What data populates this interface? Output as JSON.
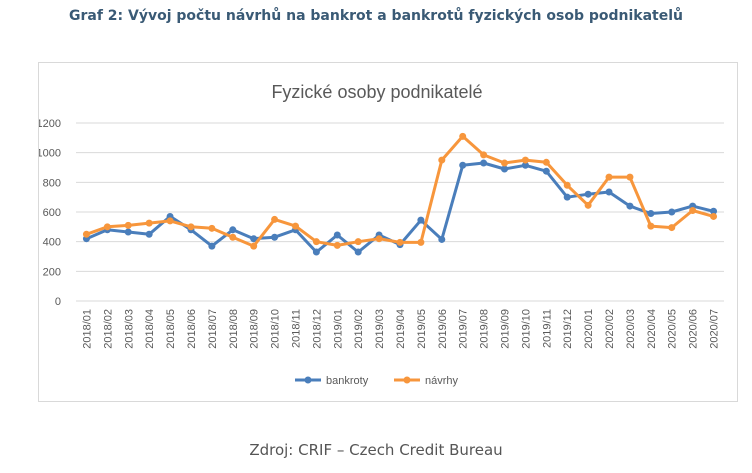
{
  "heading": "Graf 2: Vývoj počtu návrhů na bankrot a bankrotů fyzických osob podnikatelů",
  "source": "Zdroj: CRIF – Czech Credit Bureau",
  "colors": {
    "bankroty": "#4a7ebb",
    "navrhy": "#f7963c",
    "grid": "#d9d9d9",
    "text": "#595959"
  },
  "chart_data": {
    "type": "line",
    "title": "Fyzické osoby podnikatelé",
    "xlabel": "",
    "ylabel": "",
    "ylim": [
      0,
      1200
    ],
    "yticks": [
      "0",
      "200",
      "400",
      "600",
      "800",
      "1000",
      "1200"
    ],
    "grid": true,
    "legend": "bottom",
    "categories": [
      "2018/01",
      "2018/02",
      "2018/03",
      "2018/04",
      "2018/05",
      "2018/06",
      "2018/07",
      "2018/08",
      "2018/09",
      "2018/10",
      "2018/11",
      "2018/12",
      "2019/01",
      "2019/02",
      "2019/03",
      "2019/04",
      "2019/05",
      "2019/06",
      "2019/07",
      "2019/08",
      "2019/09",
      "2019/10",
      "2019/11",
      "2019/12",
      "2020/01",
      "2020/02",
      "2020/03",
      "2020/04",
      "2020/05",
      "2020/06",
      "2020/07"
    ],
    "series": [
      {
        "name": "bankroty",
        "color": "#4a7ebb",
        "values": [
          420,
          480,
          465,
          450,
          570,
          480,
          370,
          480,
          420,
          430,
          480,
          330,
          445,
          330,
          445,
          380,
          545,
          415,
          915,
          930,
          890,
          915,
          875,
          700,
          720,
          735,
          640,
          590,
          600,
          640,
          605
        ]
      },
      {
        "name": "návrhy",
        "color": "#f7963c",
        "values": [
          450,
          500,
          510,
          525,
          540,
          500,
          490,
          430,
          370,
          550,
          505,
          400,
          375,
          400,
          420,
          395,
          395,
          950,
          1110,
          985,
          930,
          950,
          935,
          780,
          645,
          835,
          835,
          505,
          495,
          610,
          570
        ]
      }
    ]
  }
}
